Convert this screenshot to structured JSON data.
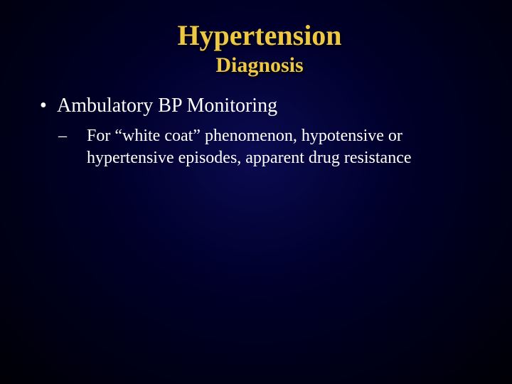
{
  "slide": {
    "title": "Hypertension",
    "subtitle": "Diagnosis",
    "bullets": {
      "level1": {
        "0": {
          "text": "Ambulatory BP Monitoring"
        }
      },
      "level2": {
        "0": {
          "text": "For “white coat” phenomenon, hypotensive or hypertensive episodes, apparent drug resistance"
        }
      }
    }
  },
  "style": {
    "title_color": "#efc843",
    "body_color": "#ffffff",
    "background_gradient_inner": "#0a0a50",
    "background_gradient_outer": "#000005",
    "title_fontsize": 40,
    "subtitle_fontsize": 30,
    "body_fontsize_l1": 28,
    "body_fontsize_l2": 24,
    "font_family": "Times New Roman"
  }
}
